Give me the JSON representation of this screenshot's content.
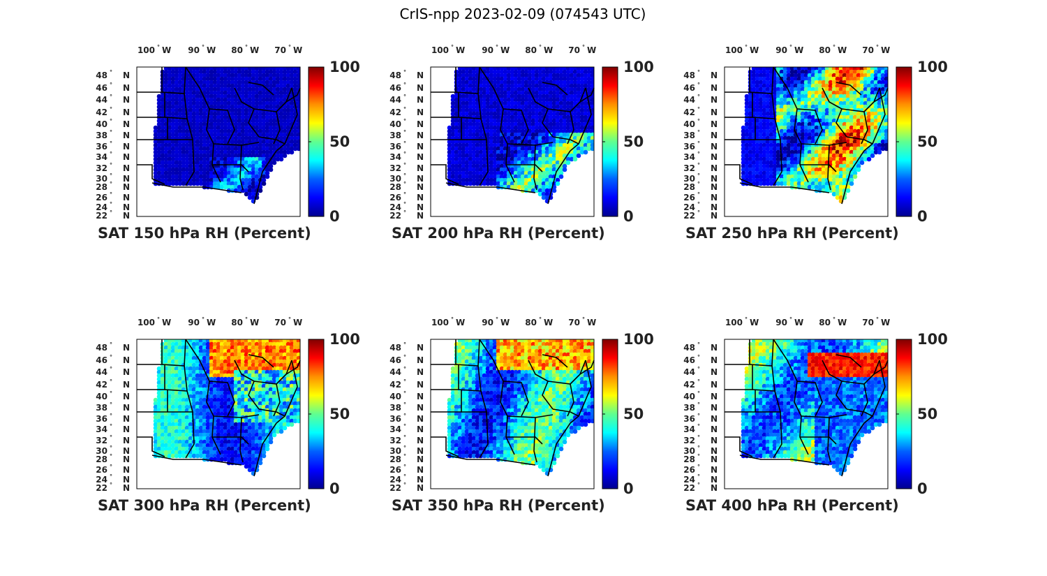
{
  "figure": {
    "title": "CrIS-npp 2023-02-09 (074543 UTC)"
  },
  "axes": {
    "lon_ticks": [
      "100",
      "90",
      "80",
      "70"
    ],
    "lon_hemisphere": "W",
    "lat_ticks": [
      "48",
      "46",
      "44",
      "42",
      "40",
      "38",
      "36",
      "34",
      "32",
      "30",
      "28",
      "26",
      "24",
      "22"
    ],
    "lat_hemisphere": "N",
    "degree_mark": "°"
  },
  "colorbar": {
    "ticks": [
      "100",
      "50",
      "0"
    ],
    "colormap": [
      "#00008f",
      "#0000ff",
      "#0080ff",
      "#00ffff",
      "#80ff80",
      "#ffff00",
      "#ff8000",
      "#ff0000",
      "#800000"
    ]
  },
  "panels": [
    {
      "caption": "SAT 150 hPa RH (Percent)",
      "level": 150
    },
    {
      "caption": "SAT 200 hPa RH (Percent)",
      "level": 200
    },
    {
      "caption": "SAT 250 hPa RH (Percent)",
      "level": 250
    },
    {
      "caption": "SAT 300 hPa RH (Percent)",
      "level": 300
    },
    {
      "caption": "SAT 350 hPa RH (Percent)",
      "level": 350
    },
    {
      "caption": "SAT 400 hPa RH (Percent)",
      "level": 400
    }
  ],
  "chart_data": {
    "type": "heatmap",
    "title": "CrIS-npp 2023-02-09 (074543 UTC)",
    "variable": "Relative humidity (Percent)",
    "value_range": [
      0,
      100
    ],
    "lon_range": [
      -106,
      -66
    ],
    "lat_range": [
      22,
      50
    ],
    "levels_hPa": [
      150,
      200,
      250,
      300,
      350,
      400
    ]
  }
}
